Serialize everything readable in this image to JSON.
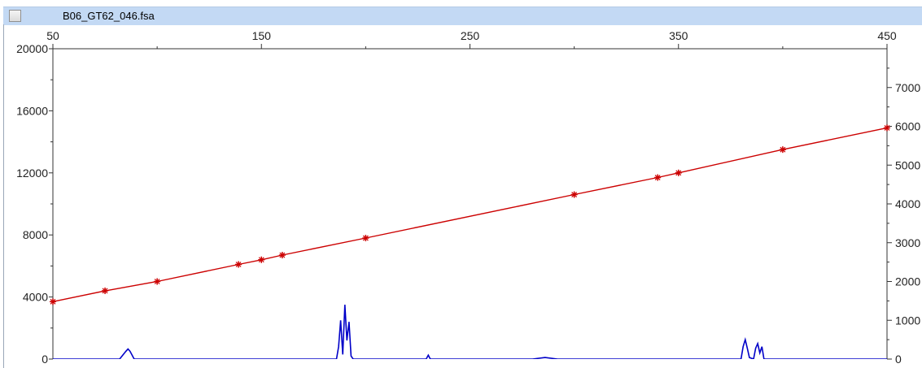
{
  "window": {
    "title": "B06_GT62_046.fsa",
    "checkbox_checked": false
  },
  "chart_data": {
    "type": "line",
    "x_axis": {
      "position": "top",
      "range": [
        50,
        450
      ],
      "major_ticks": [
        50,
        150,
        250,
        350,
        450
      ],
      "minor_ticks": [
        100,
        200,
        300,
        400
      ]
    },
    "y_left": {
      "range": [
        0,
        20000
      ],
      "major_ticks": [
        0,
        4000,
        8000,
        12000,
        16000,
        20000
      ],
      "minor_ticks": [
        2000,
        6000,
        10000,
        14000,
        18000
      ]
    },
    "y_right": {
      "range": [
        0,
        8000
      ],
      "major_ticks": [
        0,
        1000,
        2000,
        3000,
        4000,
        5000,
        6000,
        7000
      ],
      "tick_labels": [
        "0",
        "1000",
        "2000",
        "3000",
        "4000",
        "5000",
        "6000",
        "7000"
      ],
      "minor_ticks": [
        500,
        1500,
        2500,
        3500,
        4500,
        5500,
        6500,
        7500
      ]
    },
    "series": [
      {
        "color": "#cc0000",
        "marker": "star",
        "axis": "left",
        "x": [
          50,
          75,
          100,
          139,
          150,
          160,
          200,
          300,
          340,
          350,
          400,
          450
        ],
        "y": [
          3700,
          4400,
          5000,
          6100,
          6400,
          6700,
          7800,
          10600,
          11700,
          12000,
          13500,
          14900
        ]
      },
      {
        "color": "#0000c8",
        "axis": "left",
        "x": [
          50,
          82,
          85,
          86,
          87,
          89,
          92,
          150,
          186,
          187,
          188,
          189,
          190,
          191,
          192,
          193,
          194,
          195,
          229,
          230,
          231,
          280,
          286,
          292,
          380,
          381,
          382,
          383,
          384,
          386,
          387,
          388,
          389,
          390,
          391,
          450
        ],
        "y": [
          0,
          0,
          500,
          650,
          500,
          0,
          0,
          0,
          0,
          800,
          2500,
          300,
          3500,
          1200,
          2400,
          200,
          0,
          0,
          0,
          250,
          0,
          0,
          100,
          0,
          0,
          800,
          1250,
          700,
          100,
          0,
          700,
          1000,
          400,
          800,
          0,
          0
        ]
      }
    ]
  }
}
